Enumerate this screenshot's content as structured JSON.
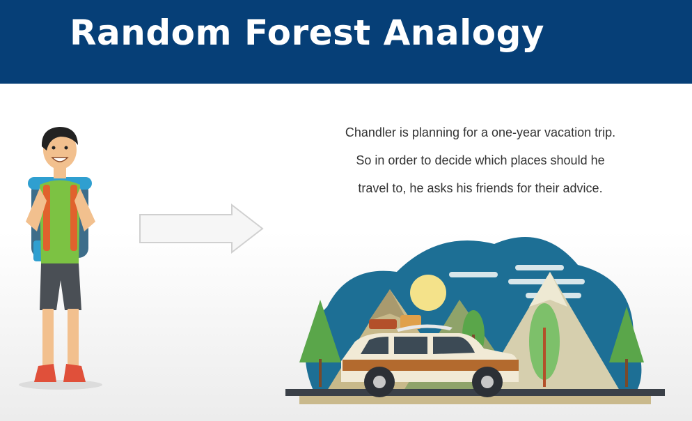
{
  "slide": {
    "title": "Random Forest Analogy",
    "description_lines": [
      "Chandler is planning for a one-year vacation trip.",
      "So in order to decide which places should he",
      "travel to, he asks his friends for their advice."
    ]
  },
  "colors": {
    "header": "#063f77",
    "title_text": "#ffffff",
    "body_text": "#333333",
    "shirt": "#7cc243",
    "backpack": "#2f9fd0",
    "scene_blob": "#1d6f95",
    "car_wood": "#b36a2e"
  },
  "illustrations": [
    "traveler-with-backpack",
    "right-arrow",
    "car-in-mountains-scene"
  ]
}
